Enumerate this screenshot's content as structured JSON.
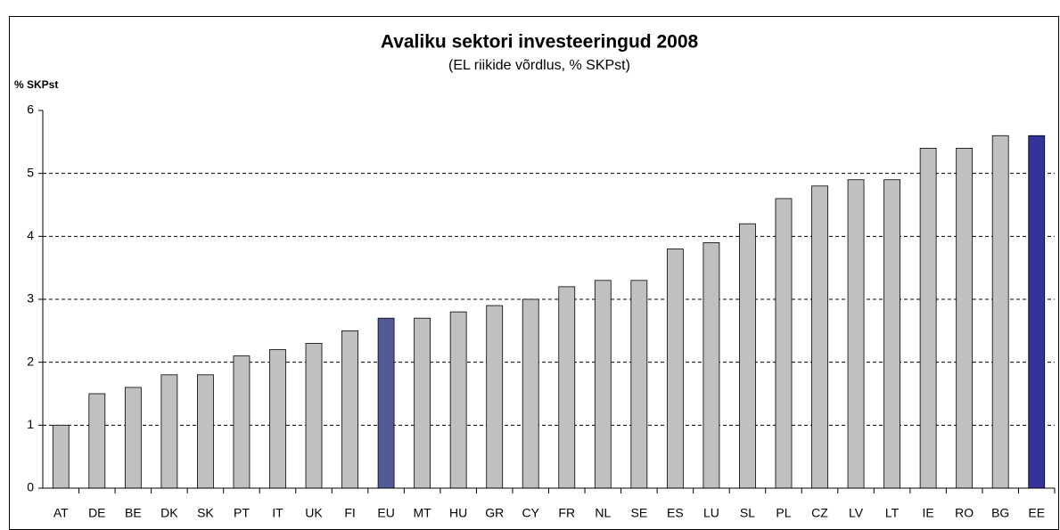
{
  "chart_data": {
    "type": "bar",
    "title": "Avaliku sektori investeeringud 2008",
    "subtitle": "(EL riikide võrdlus, % SKPst)",
    "y_label": "% SKPst",
    "categories": [
      "AT",
      "DE",
      "BE",
      "DK",
      "SK",
      "PT",
      "IT",
      "UK",
      "FI",
      "EU",
      "MT",
      "HU",
      "GR",
      "CY",
      "FR",
      "NL",
      "SE",
      "ES",
      "LU",
      "SL",
      "PL",
      "CZ",
      "LV",
      "LT",
      "IE",
      "RO",
      "BG",
      "EE"
    ],
    "values": [
      1.0,
      1.5,
      1.6,
      1.8,
      1.8,
      2.1,
      2.2,
      2.3,
      2.5,
      2.7,
      2.7,
      2.8,
      2.9,
      3.0,
      3.2,
      3.3,
      3.3,
      3.8,
      3.9,
      4.2,
      4.6,
      4.8,
      4.9,
      4.9,
      5.4,
      5.4,
      5.6,
      5.6
    ],
    "colors": [
      "#c0c0c0",
      "#c0c0c0",
      "#c0c0c0",
      "#c0c0c0",
      "#c0c0c0",
      "#c0c0c0",
      "#c0c0c0",
      "#c0c0c0",
      "#c0c0c0",
      "#545a98",
      "#c0c0c0",
      "#c0c0c0",
      "#c0c0c0",
      "#c0c0c0",
      "#c0c0c0",
      "#c0c0c0",
      "#c0c0c0",
      "#c0c0c0",
      "#c0c0c0",
      "#c0c0c0",
      "#c0c0c0",
      "#c0c0c0",
      "#c0c0c0",
      "#c0c0c0",
      "#c0c0c0",
      "#c0c0c0",
      "#c0c0c0",
      "#333399"
    ],
    "ylim": [
      0,
      6
    ],
    "yticks": [
      0,
      1,
      2,
      3,
      4,
      5,
      6
    ],
    "grid": true
  }
}
